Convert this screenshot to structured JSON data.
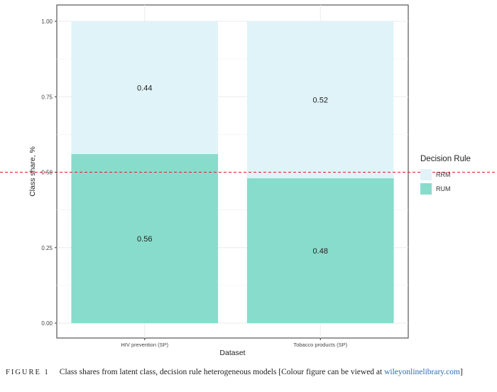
{
  "chart_data": {
    "type": "bar",
    "stacked": true,
    "categories": [
      "HIV prevention (SP)",
      "Tobacco products (SP)"
    ],
    "series": [
      {
        "name": "RUM",
        "values": [
          0.56,
          0.48
        ],
        "labels": [
          "0.56",
          "0.48"
        ],
        "color": "#88dccb"
      },
      {
        "name": "RRM",
        "values": [
          0.44,
          0.52
        ],
        "labels": [
          "0.44",
          "0.52"
        ],
        "color": "#e0f3f8"
      }
    ],
    "xlabel": "Dataset",
    "ylabel": "Class share, %",
    "ylim": [
      0,
      1
    ],
    "yticks": [
      "0.00",
      "0.25",
      "0.50",
      "0.75",
      "1.00"
    ],
    "reference_line": {
      "y": 0.5,
      "color": "#e41a1c",
      "style": "dashed"
    },
    "grid": true,
    "legend": {
      "title": "Decision Rule",
      "position": "right",
      "entries": [
        "RRM",
        "RUM"
      ]
    }
  },
  "caption": {
    "figure_label": "FIGURE 1",
    "text": "Class shares from latent class, decision rule heterogeneous models [Colour figure can be viewed at ",
    "link": "wileyonlinelibrary.com",
    "end": "]"
  }
}
